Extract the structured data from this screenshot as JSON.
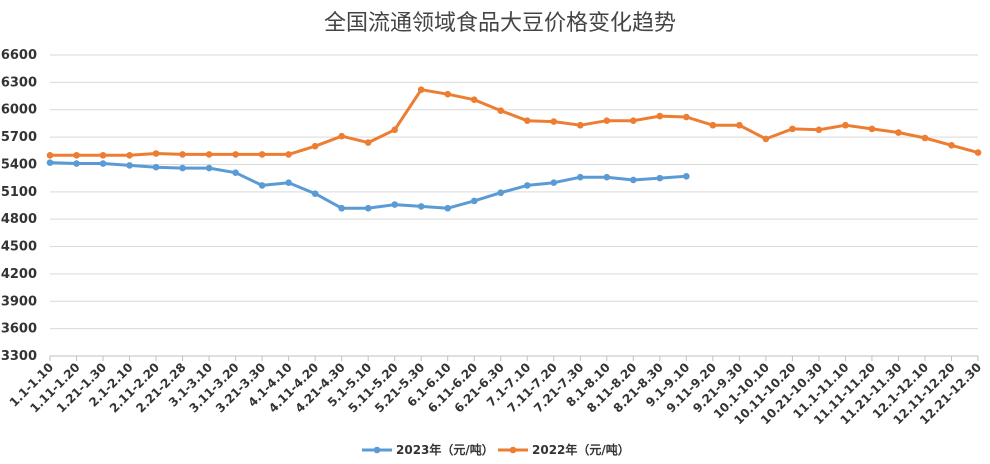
{
  "chart_data": {
    "type": "line",
    "title": "全国流通领域食品大豆价格变化趋势",
    "ylim": [
      3300,
      6600
    ],
    "yticks": [
      3300,
      3600,
      3900,
      4200,
      4500,
      4800,
      5100,
      5400,
      5700,
      6000,
      6300,
      6600
    ],
    "grid": true,
    "legend_position": "bottom",
    "categories": [
      "1.1-1.10",
      "1.11-1.20",
      "1.21-1.30",
      "2.1-2.10",
      "2.11-2.20",
      "2.21-2.28",
      "3.1-3.10",
      "3.11-3.20",
      "3.21-3.30",
      "4.1-4.10",
      "4.11-4.20",
      "4.21-4.30",
      "5.1-5.10",
      "5.11-5.20",
      "5.21-5.30",
      "6.1-6.10",
      "6.11-6.20",
      "6.21-6.30",
      "7.1-7.10",
      "7.11-7.20",
      "7.21-7.30",
      "8.1-8.10",
      "8.11-8.20",
      "8.21-8.30",
      "9.1-9.10",
      "9.11-9.20",
      "9.21-9.30",
      "10.1-10.10",
      "10.11-10.20",
      "10.21-10.30",
      "11.1-11.10",
      "11.11-11.20",
      "11.21-11.30",
      "12.1-12.10",
      "12.11-12.20",
      "12.21-12.30"
    ],
    "series": [
      {
        "name": "2023年（元/吨）",
        "color": "#5b9bd5",
        "values": [
          5420,
          5410,
          5410,
          5390,
          5370,
          5360,
          5360,
          5310,
          5170,
          5200,
          5080,
          4920,
          4920,
          4960,
          4940,
          4920,
          5000,
          5090,
          5170,
          5200,
          5260,
          5260,
          5230,
          5250,
          5270,
          null,
          null,
          null,
          null,
          null,
          null,
          null,
          null,
          null,
          null,
          null
        ]
      },
      {
        "name": "2022年（元/吨）",
        "color": "#ed7d31",
        "values": [
          5500,
          5500,
          5500,
          5500,
          5520,
          5510,
          5510,
          5510,
          5510,
          5510,
          5600,
          5710,
          5640,
          5780,
          6220,
          6170,
          6110,
          5990,
          5880,
          5870,
          5830,
          5880,
          5880,
          5930,
          5920,
          5830,
          5830,
          5680,
          5790,
          5780,
          5830,
          5790,
          5750,
          5690,
          5610,
          5530
        ]
      }
    ]
  }
}
